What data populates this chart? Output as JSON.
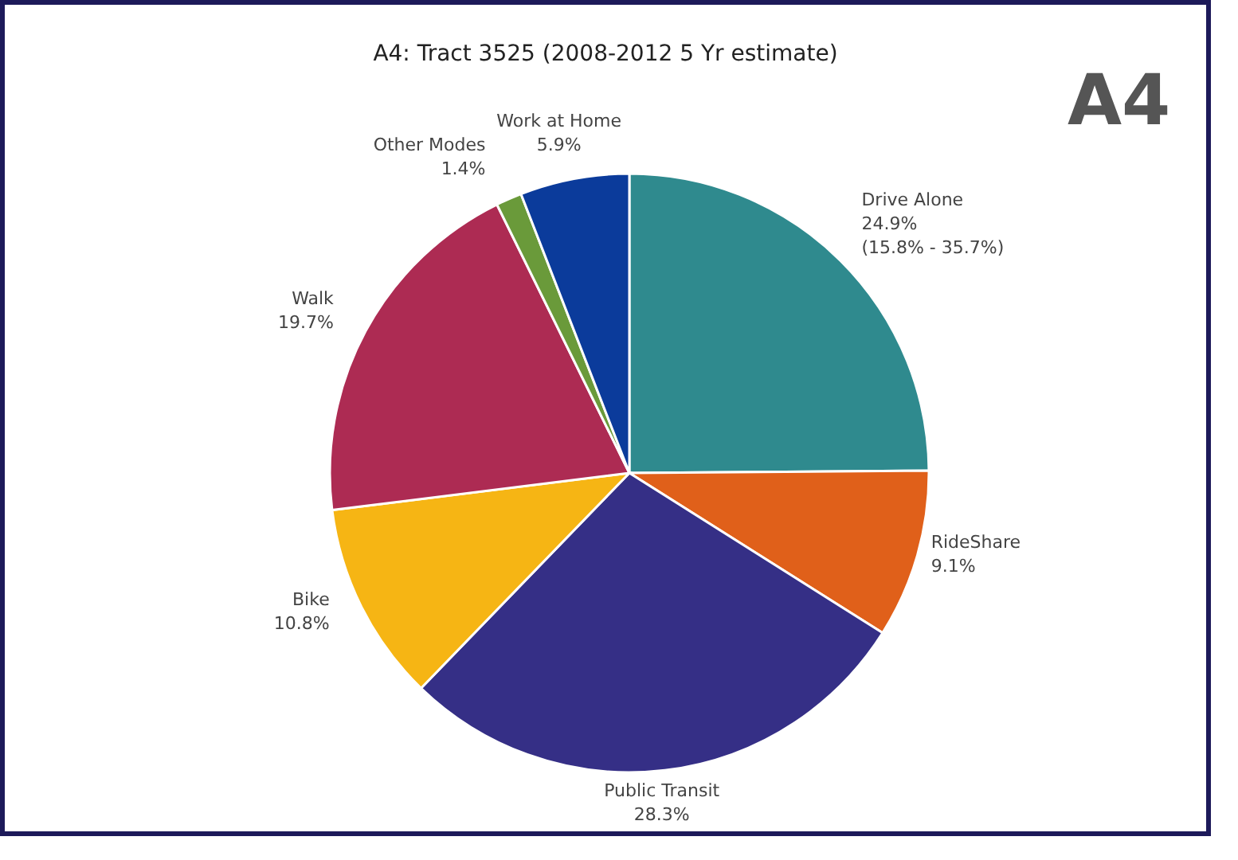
{
  "chart_data": {
    "type": "pie",
    "title": "A4: Tract 3525 (2008-2012 5 Yr estimate)",
    "categories": [
      "Drive Alone",
      "RideShare",
      "Public Transit",
      "Bike",
      "Walk",
      "Other Modes",
      "Work at Home"
    ],
    "values": [
      24.9,
      9.1,
      28.3,
      10.8,
      19.7,
      1.4,
      5.9
    ],
    "colors": [
      "#2f8a8e",
      "#e0601a",
      "#352f86",
      "#f6b514",
      "#ad2b53",
      "#6a9a3a",
      "#0b3b9b"
    ],
    "value_labels": [
      "24.9%\n(15.8% - 35.7%)",
      "9.1%",
      "28.3%",
      "10.8%",
      "19.7%",
      "1.4%",
      "5.9%"
    ],
    "annotations": [
      "A4"
    ]
  }
}
